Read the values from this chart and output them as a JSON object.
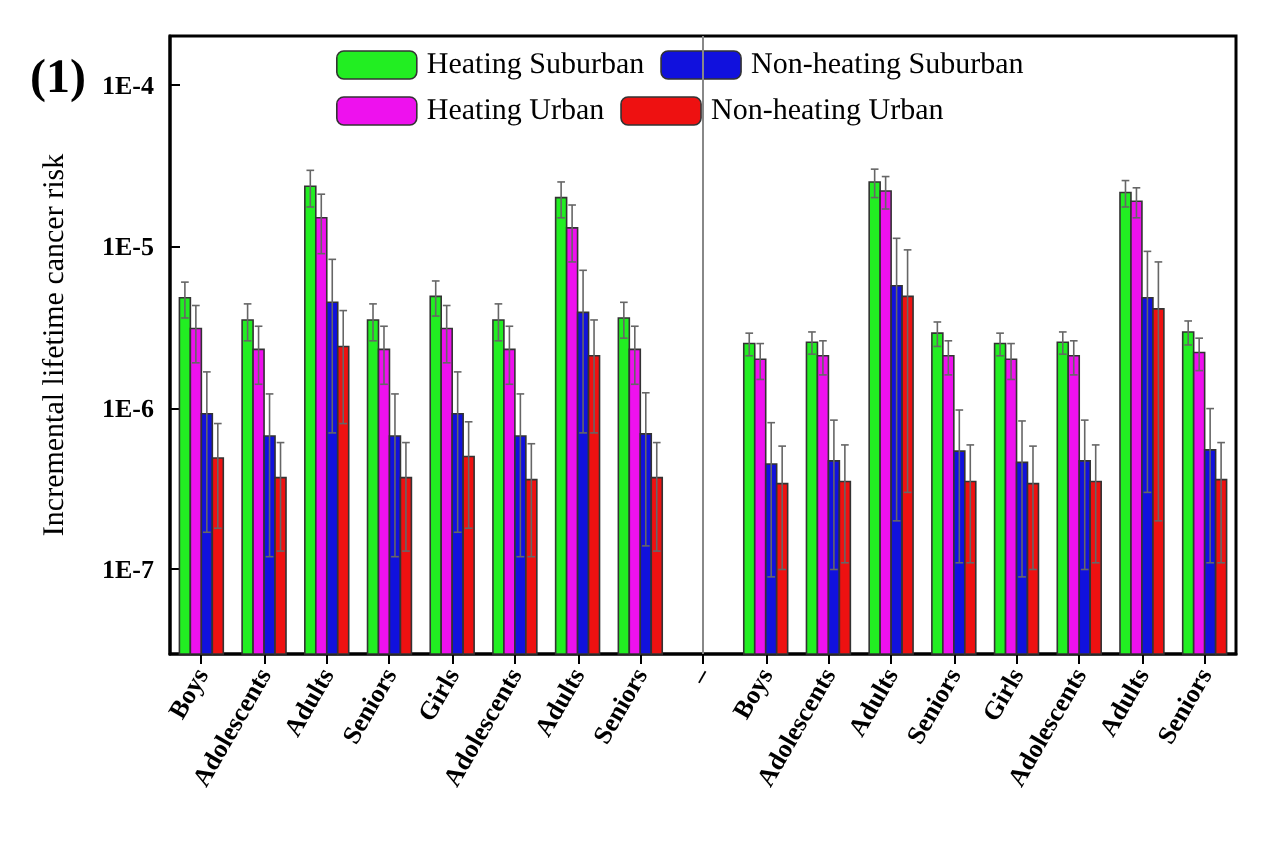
{
  "chart_data": {
    "type": "bar",
    "title": "(1)",
    "ylabel": "Incremental lifetime cancer risk",
    "categories": [
      "Boys",
      "Adolescents",
      "Adults",
      "Seniors",
      "Girls",
      "Adolescents",
      "Adults",
      "Seniors",
      "–",
      "Boys",
      "Adolescents",
      "Adults",
      "Seniors",
      "Girls",
      "Adolescents",
      "Adults",
      "Seniors"
    ],
    "series": [
      {
        "name": "Heating Suburban",
        "color": "#22ee22",
        "values": [
          4.8e-06,
          3.5e-06,
          2.35e-05,
          3.5e-06,
          4.9e-06,
          3.5e-06,
          2e-05,
          3.6e-06,
          null,
          2.5e-06,
          2.55e-06,
          2.5e-05,
          2.9e-06,
          2.5e-06,
          2.55e-06,
          2.15e-05,
          2.95e-06
        ],
        "errors": [
          1.2e-06,
          9e-07,
          6e-06,
          9e-07,
          1.2e-06,
          9e-07,
          5e-06,
          9e-07,
          null,
          4e-07,
          4e-07,
          5e-06,
          5e-07,
          4e-07,
          4e-07,
          4e-06,
          5e-07
        ]
      },
      {
        "name": "Heating Urban",
        "color": "#ee11ee",
        "values": [
          3.1e-06,
          2.3e-06,
          1.5e-05,
          2.3e-06,
          3.1e-06,
          2.3e-06,
          1.3e-05,
          2.3e-06,
          null,
          2e-06,
          2.1e-06,
          2.2e-05,
          2.1e-06,
          2e-06,
          2.1e-06,
          1.9e-05,
          2.2e-06
        ],
        "errors": [
          1.2e-06,
          9e-07,
          6e-06,
          9e-07,
          1.2e-06,
          9e-07,
          5e-06,
          9e-07,
          null,
          5e-07,
          5e-07,
          5e-06,
          5e-07,
          5e-07,
          5e-07,
          4e-06,
          5e-07
        ]
      },
      {
        "name": "Non-heating Suburban",
        "color": "#1111dd",
        "values": [
          9.2e-07,
          6.7e-07,
          4.5e-06,
          6.7e-07,
          9.2e-07,
          6.7e-07,
          3.9e-06,
          6.9e-07,
          null,
          4.5e-07,
          4.7e-07,
          5.7e-06,
          5.4e-07,
          4.6e-07,
          4.7e-07,
          4.8e-06,
          5.5e-07
        ],
        "errors": [
          7.5e-07,
          5.5e-07,
          3.8e-06,
          5.5e-07,
          7.5e-07,
          5.5e-07,
          3.2e-06,
          5.5e-07,
          null,
          3.6e-07,
          3.7e-07,
          5.5e-06,
          4.3e-07,
          3.7e-07,
          3.7e-07,
          4.5e-06,
          4.4e-07
        ]
      },
      {
        "name": "Non-heating Urban",
        "color": "#ee1111",
        "values": [
          4.9e-07,
          3.7e-07,
          2.4e-06,
          3.7e-07,
          5e-07,
          3.6e-07,
          2.1e-06,
          3.7e-07,
          null,
          3.4e-07,
          3.5e-07,
          4.9e-06,
          3.5e-07,
          3.4e-07,
          3.5e-07,
          4.1e-06,
          3.6e-07
        ],
        "errors": [
          3.1e-07,
          2.4e-07,
          1.6e-06,
          2.4e-07,
          3.2e-07,
          2.4e-07,
          1.4e-06,
          2.4e-07,
          null,
          2.4e-07,
          2.4e-07,
          4.6e-06,
          2.4e-07,
          2.4e-07,
          2.4e-07,
          3.9e-06,
          2.5e-07
        ]
      }
    ],
    "log": "y",
    "ylim": [
      3e-08,
      0.0002
    ],
    "yticks": [
      {
        "value": 1e-07,
        "label": "1E-7"
      },
      {
        "value": 1e-06,
        "label": "1E-6"
      },
      {
        "value": 1e-05,
        "label": "1E-5"
      },
      {
        "value": 0.0001,
        "label": "1E-4"
      }
    ],
    "ref_lines": [
      {
        "axis": "x",
        "value": "–",
        "color": "#888888"
      }
    ],
    "grid": false,
    "legend": "top"
  }
}
